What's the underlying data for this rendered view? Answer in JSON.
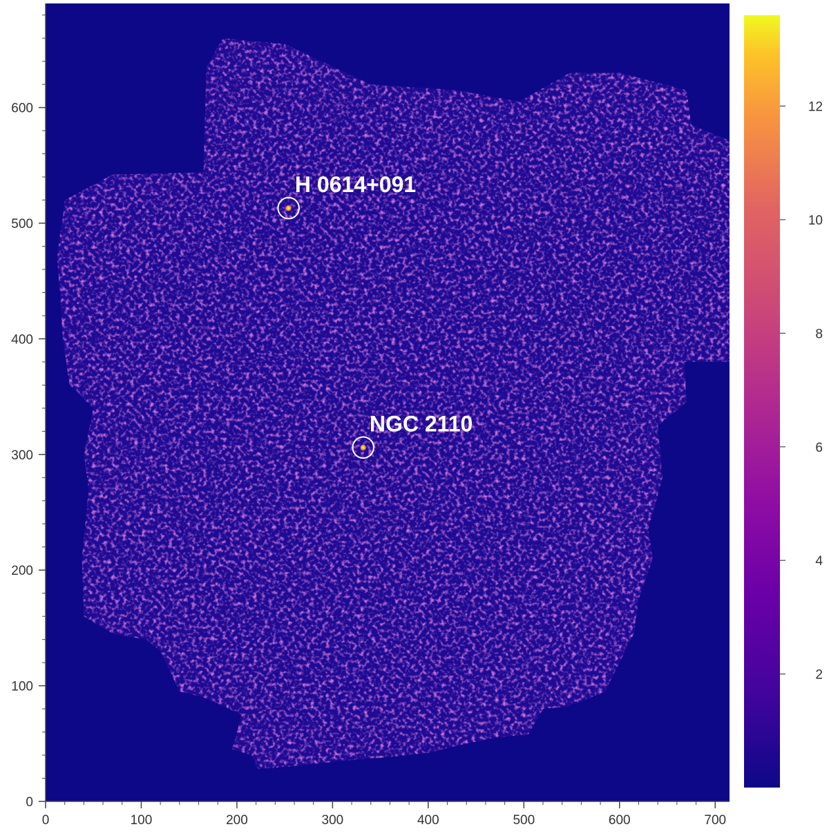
{
  "chart_data": {
    "type": "heatmap",
    "title": "",
    "xlabel": "",
    "ylabel": "",
    "xlim": [
      0,
      715
    ],
    "ylim": [
      0,
      690
    ],
    "x_ticks": [
      0,
      100,
      200,
      300,
      400,
      500,
      600,
      700
    ],
    "y_ticks": [
      0,
      100,
      200,
      300,
      400,
      500,
      600
    ],
    "x_minor_step": 20,
    "y_minor_step": 20,
    "grid": false,
    "colorscale": "plasma",
    "background_color": "#0d0887",
    "colorbar": {
      "position": "right",
      "range": [
        0,
        13.6
      ],
      "ticks": [
        2,
        4,
        6,
        8,
        10,
        12
      ]
    },
    "image_footprint_polygon": [
      [
        18,
        505
      ],
      [
        20,
        520
      ],
      [
        70,
        542
      ],
      [
        165,
        544
      ],
      [
        168,
        635
      ],
      [
        185,
        660
      ],
      [
        250,
        655
      ],
      [
        340,
        620
      ],
      [
        430,
        615
      ],
      [
        495,
        605
      ],
      [
        548,
        630
      ],
      [
        600,
        630
      ],
      [
        670,
        615
      ],
      [
        675,
        585
      ],
      [
        735,
        565
      ],
      [
        740,
        500
      ],
      [
        775,
        495
      ],
      [
        780,
        460
      ],
      [
        718,
        420
      ],
      [
        720,
        380
      ],
      [
        668,
        380
      ],
      [
        670,
        345
      ],
      [
        640,
        325
      ],
      [
        645,
        280
      ],
      [
        630,
        235
      ],
      [
        635,
        210
      ],
      [
        620,
        175
      ],
      [
        615,
        145
      ],
      [
        585,
        95
      ],
      [
        565,
        88
      ],
      [
        545,
        82
      ],
      [
        520,
        80
      ],
      [
        505,
        58
      ],
      [
        470,
        55
      ],
      [
        440,
        50
      ],
      [
        400,
        42
      ],
      [
        355,
        38
      ],
      [
        310,
        35
      ],
      [
        255,
        30
      ],
      [
        222,
        28
      ],
      [
        215,
        40
      ],
      [
        195,
        45
      ],
      [
        205,
        75
      ],
      [
        165,
        90
      ],
      [
        140,
        95
      ],
      [
        120,
        130
      ],
      [
        105,
        140
      ],
      [
        70,
        145
      ],
      [
        40,
        160
      ],
      [
        38,
        210
      ],
      [
        45,
        270
      ],
      [
        40,
        300
      ],
      [
        50,
        340
      ],
      [
        25,
        360
      ],
      [
        18,
        400
      ],
      [
        15,
        440
      ],
      [
        12,
        470
      ],
      [
        15,
        490
      ]
    ],
    "sources": [
      {
        "label": "H 0614+091",
        "x": 254,
        "y": 513,
        "radius": 11
      },
      {
        "label": "NGC 2110",
        "x": 332,
        "y": 306,
        "radius": 11
      }
    ]
  }
}
